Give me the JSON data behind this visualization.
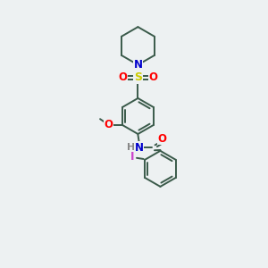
{
  "bg_color": "#edf1f2",
  "bond_color": "#3a5a4a",
  "atom_colors": {
    "N": "#0000cc",
    "O": "#ff0000",
    "S": "#cccc00",
    "I": "#cc44cc",
    "H": "#888888"
  },
  "line_width": 1.4,
  "font_size": 8.5,
  "ring_r": 0.68
}
